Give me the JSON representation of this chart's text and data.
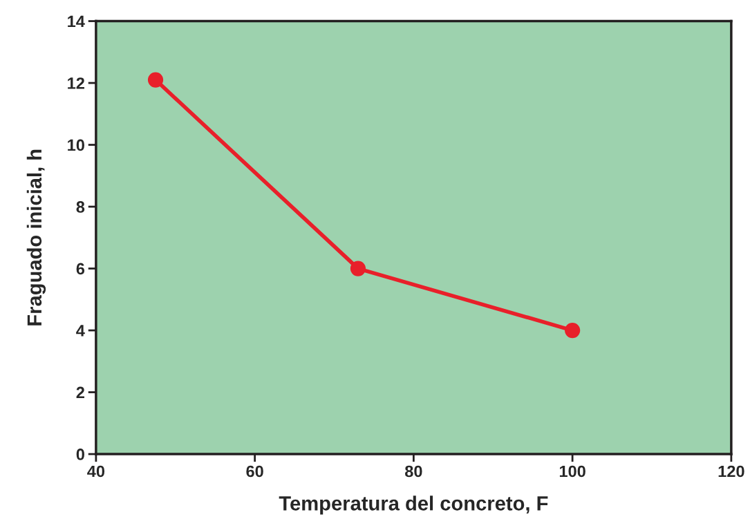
{
  "chart_data": {
    "type": "line",
    "xlabel": "Temperatura del concreto, F",
    "ylabel": "Fraguado inicial, h",
    "x": [
      47.5,
      73,
      100
    ],
    "series": [
      {
        "color": "#e8202a",
        "values": [
          12.1,
          6.0,
          4.0
        ]
      }
    ],
    "xlim": [
      40,
      120
    ],
    "xticks": [
      40,
      60,
      80,
      100,
      120
    ],
    "ylim": [
      0,
      14
    ],
    "yticks": [
      0,
      2,
      4,
      6,
      8,
      10,
      12,
      14
    ],
    "marker": "circle",
    "line_style": "solid",
    "grid": false,
    "legend": false
  }
}
